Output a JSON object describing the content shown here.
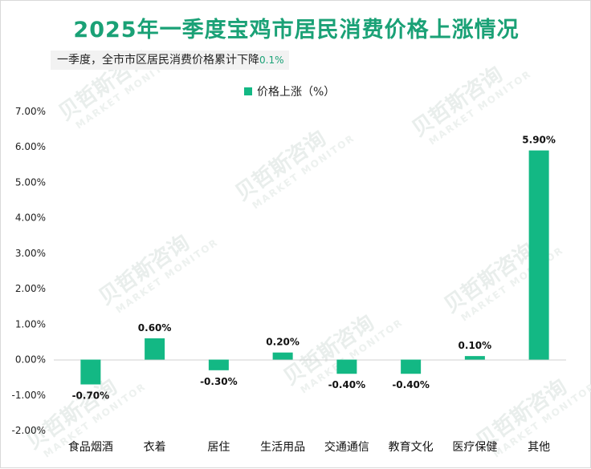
{
  "title": "2025年一季度宝鸡市居民消费价格上涨情况",
  "subtitle": {
    "text": "一季度，全市市区居民消费价格累计下降",
    "highlight": "0.1%"
  },
  "watermark": {
    "brand": "贝哲斯咨询",
    "en": "MARKET MONITOR"
  },
  "colors": {
    "title": "#1aa176",
    "bar": "#13b884",
    "axis": "#d0d0d0"
  },
  "chart_data": {
    "type": "bar",
    "title": "2025年一季度宝鸡市居民消费价格上涨情况",
    "legend": [
      "价格上涨（%）"
    ],
    "legend_position": "top-center",
    "categories": [
      "食品烟酒",
      "衣着",
      "居住",
      "生活用品",
      "交通通信",
      "教育文化",
      "医疗保健",
      "其他"
    ],
    "values": [
      -0.7,
      0.6,
      -0.3,
      0.2,
      -0.4,
      -0.4,
      0.1,
      5.9
    ],
    "data_labels": [
      "-0.70%",
      "0.60%",
      "-0.30%",
      "0.20%",
      "-0.40%",
      "-0.40%",
      "0.10%",
      "5.90%"
    ],
    "yticks": [
      "7.00%",
      "6.00%",
      "5.00%",
      "4.00%",
      "3.00%",
      "2.00%",
      "1.00%",
      "0.00%",
      "-1.00%",
      "-2.00%"
    ],
    "ytick_values": [
      7,
      6,
      5,
      4,
      3,
      2,
      1,
      0,
      -1,
      -2
    ],
    "ylim": [
      -2,
      7
    ],
    "grid": false
  }
}
